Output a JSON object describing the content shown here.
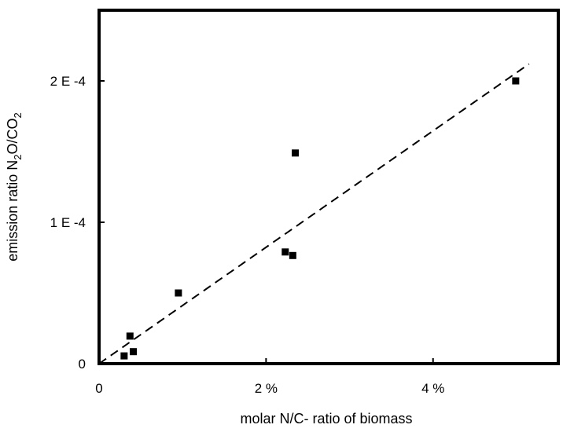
{
  "chart_data": {
    "type": "scatter",
    "title": "",
    "xlabel": "molar N/C- ratio of biomass",
    "ylabel": {
      "prefix": "emission ratio N",
      "sub1": "2",
      "middle": "O/CO",
      "sub2": "2"
    },
    "xlim": [
      0,
      0.055
    ],
    "ylim": [
      0,
      0.00025
    ],
    "x_ticks": [
      {
        "value": 0,
        "label": "0"
      },
      {
        "value": 0.02,
        "label": "2 %"
      },
      {
        "value": 0.04,
        "label": "4 %"
      }
    ],
    "y_ticks": [
      {
        "value": 0,
        "label": "0"
      },
      {
        "value": 0.0001,
        "label": "1 E -4"
      },
      {
        "value": 0.0002,
        "label": "2 E -4"
      }
    ],
    "grid": false,
    "legend": "none",
    "points": [
      {
        "x": 0.003,
        "y": 5.5e-06
      },
      {
        "x": 0.0037,
        "y": 1.95e-05
      },
      {
        "x": 0.0041,
        "y": 8.5e-06
      },
      {
        "x": 0.0095,
        "y": 5e-05
      },
      {
        "x": 0.0223,
        "y": 7.9e-05
      },
      {
        "x": 0.0232,
        "y": 7.65e-05
      },
      {
        "x": 0.0235,
        "y": 0.000149
      },
      {
        "x": 0.0499,
        "y": 0.0002
      }
    ],
    "trendline": {
      "style": "dashed",
      "x": [
        0,
        0.0515
      ],
      "y": [
        0,
        0.000212
      ]
    },
    "colors": {
      "marker": "#000000",
      "line": "#000000",
      "frame": "#000000"
    }
  }
}
